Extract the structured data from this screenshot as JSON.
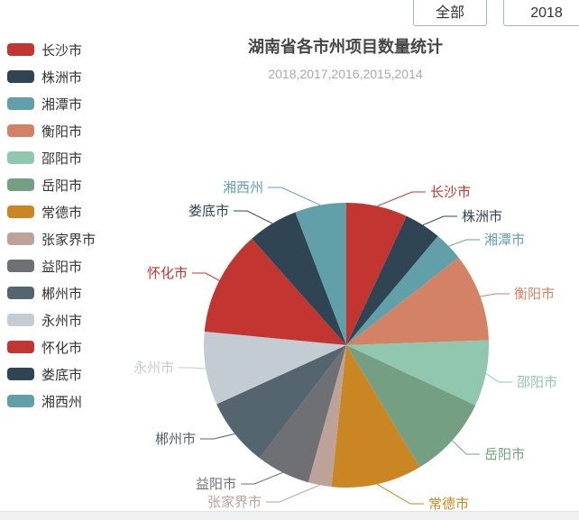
{
  "toolbar": {
    "all_label": "全部",
    "year_label": "2018"
  },
  "title": {
    "text": "湖南省各市州项目数量统计",
    "subtext": "2018,2017,2016,2015,2014"
  },
  "legend": {
    "position": "left",
    "items": [
      {
        "id": "changsha",
        "label": "长沙市",
        "color": "#c23531"
      },
      {
        "id": "zhuzhou",
        "label": "株洲市",
        "color": "#2f4554"
      },
      {
        "id": "xiangtan",
        "label": "湘潭市",
        "color": "#61a0a8"
      },
      {
        "id": "hengyang",
        "label": "衡阳市",
        "color": "#d48265"
      },
      {
        "id": "shaoyang",
        "label": "邵阳市",
        "color": "#91c7ae"
      },
      {
        "id": "yueyang",
        "label": "岳阳市",
        "color": "#749f83"
      },
      {
        "id": "changde",
        "label": "常德市",
        "color": "#ca8622"
      },
      {
        "id": "zhangjiajie",
        "label": "张家界市",
        "color": "#bda29a"
      },
      {
        "id": "yiyang",
        "label": "益阳市",
        "color": "#6e7074"
      },
      {
        "id": "chenzhou",
        "label": "郴州市",
        "color": "#546570"
      },
      {
        "id": "yongzhou",
        "label": "永州市",
        "color": "#c4ccd3"
      },
      {
        "id": "huaihua",
        "label": "怀化市",
        "color": "#c23531"
      },
      {
        "id": "loudi",
        "label": "娄底市",
        "color": "#2f4554"
      },
      {
        "id": "xiangxi",
        "label": "湘西州",
        "color": "#61a0a8"
      }
    ]
  },
  "chart_data": {
    "type": "pie",
    "title": "湖南省各市州项目数量统计",
    "subtitle": "2018,2017,2016,2015,2014",
    "legend_position": "left",
    "value_labels_visible": false,
    "note": "percent values estimated from measured slice angles (no numeric labels shown)",
    "categories": [
      "长沙市",
      "株洲市",
      "湘潭市",
      "衡阳市",
      "邵阳市",
      "岳阳市",
      "常德市",
      "张家界市",
      "益阳市",
      "郴州市",
      "永州市",
      "怀化市",
      "娄底市",
      "湘西州"
    ],
    "slices": [
      {
        "id": "changsha",
        "name": "长沙市",
        "color": "#c23531",
        "start_deg": 0,
        "end_deg": 25,
        "percent": 6.9
      },
      {
        "id": "zhuzhou",
        "name": "株洲市",
        "color": "#2f4554",
        "start_deg": 25,
        "end_deg": 40,
        "percent": 4.2
      },
      {
        "id": "xiangtan",
        "name": "湘潭市",
        "color": "#61a0a8",
        "start_deg": 40,
        "end_deg": 52,
        "percent": 3.3
      },
      {
        "id": "hengyang",
        "name": "衡阳市",
        "color": "#d48265",
        "start_deg": 52,
        "end_deg": 88,
        "percent": 10.0
      },
      {
        "id": "shaoyang",
        "name": "邵阳市",
        "color": "#91c7ae",
        "start_deg": 88,
        "end_deg": 115,
        "percent": 7.5
      },
      {
        "id": "yueyang",
        "name": "岳阳市",
        "color": "#749f83",
        "start_deg": 115,
        "end_deg": 149,
        "percent": 9.4
      },
      {
        "id": "changde",
        "name": "常德市",
        "color": "#ca8622",
        "start_deg": 149,
        "end_deg": 186,
        "percent": 10.3
      },
      {
        "id": "zhangjiajie",
        "name": "张家界市",
        "color": "#bda29a",
        "start_deg": 186,
        "end_deg": 195.5,
        "percent": 2.6
      },
      {
        "id": "yiyang",
        "name": "益阳市",
        "color": "#6e7074",
        "start_deg": 195.5,
        "end_deg": 217.5,
        "percent": 6.1
      },
      {
        "id": "chenzhou",
        "name": "郴州市",
        "color": "#546570",
        "start_deg": 217.5,
        "end_deg": 245.5,
        "percent": 7.8
      },
      {
        "id": "yongzhou",
        "name": "永州市",
        "color": "#c4ccd3",
        "start_deg": 245.5,
        "end_deg": 275.5,
        "percent": 8.3
      },
      {
        "id": "huaihua",
        "name": "怀化市",
        "color": "#c23531",
        "start_deg": 275.5,
        "end_deg": 318.5,
        "percent": 11.9
      },
      {
        "id": "loudi",
        "name": "娄底市",
        "color": "#2f4554",
        "start_deg": 318.5,
        "end_deg": 339,
        "percent": 5.7
      },
      {
        "id": "xiangxi",
        "name": "湘西州",
        "color": "#61a0a8",
        "start_deg": 339,
        "end_deg": 360,
        "percent": 5.8
      }
    ]
  }
}
